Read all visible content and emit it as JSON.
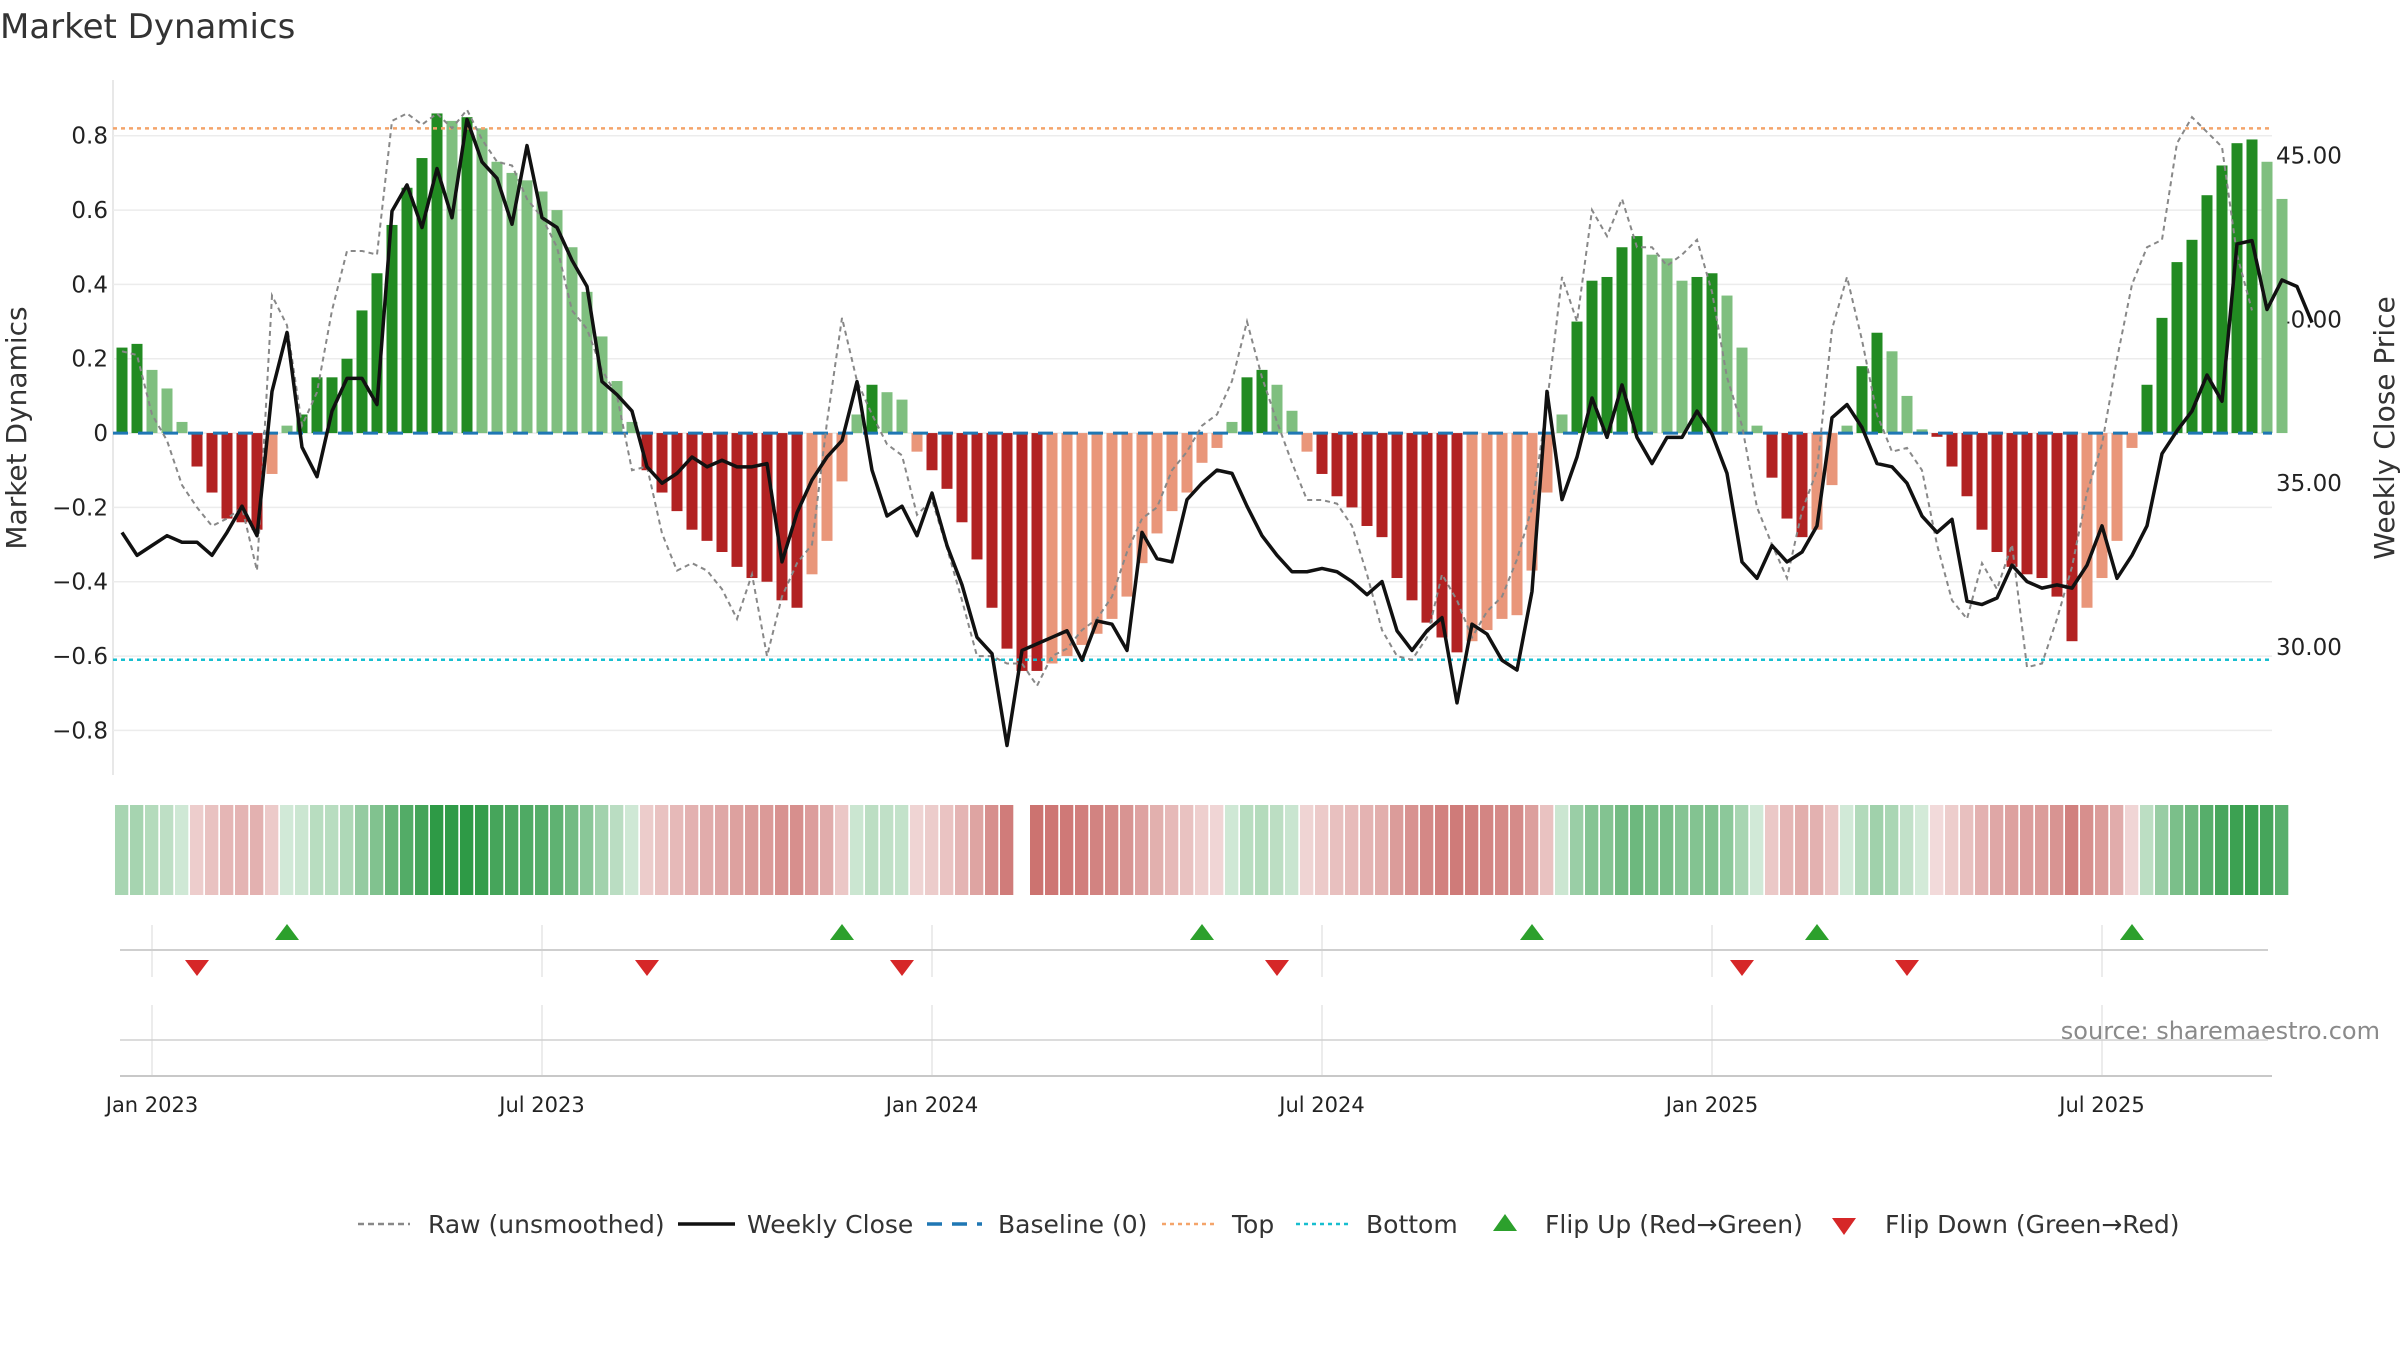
{
  "title": "Market Dynamics",
  "source_note": "source: sharemaestro.com",
  "colors": {
    "strong_green": "#228b22",
    "light_green": "#7fbf7f",
    "strong_red": "#b22222",
    "light_red": "#e9967a",
    "raw_line": "#888888",
    "close_line": "#111111",
    "baseline": "#1f77b4",
    "top_line": "#f4a46a",
    "bottom_line": "#17becf",
    "flip_up": "#2ca02c",
    "flip_down": "#d62728"
  },
  "chart_data": {
    "type": "bar",
    "title": "Market Dynamics",
    "ylabel": "Market Dynamics",
    "y2label": "Weekly Close Price",
    "ylim": [
      -0.92,
      0.95
    ],
    "y2lim": [
      26.1,
      47.3
    ],
    "yticks": [
      {
        "v": 0.8,
        "label": "0.8"
      },
      {
        "v": 0.6,
        "label": "0.6"
      },
      {
        "v": 0.4,
        "label": "0.4"
      },
      {
        "v": 0.2,
        "label": "0.2"
      },
      {
        "v": 0,
        "label": "0"
      },
      {
        "v": -0.2,
        "label": "−0.2"
      },
      {
        "v": -0.4,
        "label": "−0.4"
      },
      {
        "v": -0.6,
        "label": "−0.6"
      },
      {
        "v": -0.8,
        "label": "−0.8"
      }
    ],
    "y2ticks": [
      {
        "v": 45,
        "label": "45.00"
      },
      {
        "v": 40,
        "label": "40.00"
      },
      {
        "v": 35,
        "label": "35.00"
      },
      {
        "v": 30,
        "label": "30.00"
      }
    ],
    "x_date_ticks": [
      {
        "week": 2,
        "label": "Jan 2023"
      },
      {
        "week": 28,
        "label": "Jul 2023"
      },
      {
        "week": 54,
        "label": "Jan 2024"
      },
      {
        "week": 80,
        "label": "Jul 2024"
      },
      {
        "week": 106,
        "label": "Jan 2025"
      },
      {
        "week": 132,
        "label": "Jul 2025"
      }
    ],
    "grid": true,
    "legend_position": "bottom",
    "top_threshold": 0.82,
    "bottom_threshold": -0.61,
    "baseline": 0,
    "weeks": 144,
    "dynamics": [
      0.23,
      0.24,
      0.17,
      0.12,
      0.03,
      -0.09,
      -0.16,
      -0.23,
      -0.24,
      -0.26,
      -0.11,
      0.02,
      0.05,
      0.15,
      0.15,
      0.2,
      0.33,
      0.43,
      0.56,
      0.66,
      0.74,
      0.86,
      0.84,
      0.85,
      0.82,
      0.73,
      0.7,
      0.68,
      0.65,
      0.6,
      0.5,
      0.38,
      0.26,
      0.14,
      0.03,
      -0.1,
      -0.16,
      -0.21,
      -0.26,
      -0.29,
      -0.32,
      -0.36,
      -0.39,
      -0.4,
      -0.45,
      -0.47,
      -0.38,
      -0.29,
      -0.13,
      0.05,
      0.13,
      0.11,
      0.09,
      -0.05,
      -0.1,
      -0.15,
      -0.24,
      -0.34,
      -0.47,
      -0.58,
      -0.64,
      -0.64,
      -0.62,
      -0.6,
      -0.57,
      -0.54,
      -0.5,
      -0.44,
      -0.35,
      -0.27,
      -0.21,
      -0.16,
      -0.08,
      -0.04,
      0.03,
      0.15,
      0.17,
      0.13,
      0.06,
      -0.05,
      -0.11,
      -0.17,
      -0.2,
      -0.25,
      -0.28,
      -0.39,
      -0.45,
      -0.51,
      -0.55,
      -0.59,
      -0.56,
      -0.53,
      -0.5,
      -0.49,
      -0.37,
      -0.16,
      0.05,
      0.3,
      0.41,
      0.42,
      0.5,
      0.53,
      0.48,
      0.47,
      0.41,
      0.42,
      0.43,
      0.37,
      0.23,
      0.02,
      -0.12,
      -0.23,
      -0.28,
      -0.26,
      -0.14,
      0.02,
      0.18,
      0.27,
      0.22,
      0.1,
      0.01,
      -0.01,
      -0.09,
      -0.17,
      -0.26,
      -0.32,
      -0.36,
      -0.38,
      -0.39,
      -0.44,
      -0.56,
      -0.47,
      -0.39,
      -0.29,
      -0.04,
      0.13,
      0.31,
      0.46,
      0.52,
      0.64,
      0.72,
      0.78,
      0.79,
      0.73,
      0.63
    ],
    "raw": [
      0.22,
      0.21,
      0.05,
      -0.02,
      -0.14,
      -0.2,
      -0.25,
      -0.23,
      -0.2,
      -0.37,
      0.37,
      0.29,
      0.02,
      0.11,
      0.33,
      0.49,
      0.49,
      0.48,
      0.84,
      0.86,
      0.83,
      0.86,
      0.82,
      0.87,
      0.79,
      0.73,
      0.72,
      0.63,
      0.58,
      0.5,
      0.33,
      0.28,
      0.17,
      0.1,
      -0.1,
      -0.09,
      -0.27,
      -0.37,
      -0.35,
      -0.37,
      -0.42,
      -0.5,
      -0.38,
      -0.6,
      -0.44,
      -0.35,
      -0.3,
      0.03,
      0.31,
      0.14,
      0.05,
      -0.03,
      -0.06,
      -0.22,
      -0.18,
      -0.31,
      -0.45,
      -0.6,
      -0.6,
      -0.62,
      -0.62,
      -0.68,
      -0.6,
      -0.58,
      -0.53,
      -0.5,
      -0.44,
      -0.32,
      -0.23,
      -0.2,
      -0.1,
      -0.05,
      0.02,
      0.05,
      0.14,
      0.3,
      0.15,
      0.03,
      -0.08,
      -0.18,
      -0.18,
      -0.19,
      -0.25,
      -0.38,
      -0.53,
      -0.6,
      -0.61,
      -0.55,
      -0.38,
      -0.45,
      -0.55,
      -0.48,
      -0.44,
      -0.34,
      -0.2,
      0.08,
      0.42,
      0.3,
      0.6,
      0.53,
      0.63,
      0.5,
      0.5,
      0.45,
      0.48,
      0.52,
      0.38,
      0.15,
      0.02,
      -0.2,
      -0.3,
      -0.39,
      -0.21,
      -0.1,
      0.28,
      0.42,
      0.25,
      0.05,
      -0.05,
      -0.04,
      -0.1,
      -0.3,
      -0.45,
      -0.5,
      -0.35,
      -0.42,
      -0.3,
      -0.63,
      -0.62,
      -0.5,
      -0.36,
      -0.16,
      -0.03,
      0.2,
      0.4,
      0.5,
      0.52,
      0.78,
      0.85,
      0.81,
      0.77,
      0.48,
      0.33
    ],
    "close": [
      33.5,
      32.8,
      33.1,
      33.4,
      33.2,
      33.2,
      32.8,
      33.5,
      34.3,
      33.4,
      37.8,
      39.6,
      36.1,
      35.2,
      37.2,
      38.2,
      38.2,
      37.4,
      43.3,
      44.1,
      42.8,
      44.6,
      43.1,
      46.1,
      44.8,
      44.3,
      42.9,
      45.3,
      43.1,
      42.8,
      41.8,
      41.0,
      38.1,
      37.7,
      37.2,
      35.5,
      35.0,
      35.3,
      35.8,
      35.5,
      35.7,
      35.5,
      35.5,
      35.6,
      32.6,
      34.1,
      35.1,
      35.8,
      36.3,
      38.1,
      35.4,
      34.0,
      34.3,
      33.4,
      34.7,
      33.1,
      31.9,
      30.3,
      29.8,
      27.0,
      29.9,
      30.1,
      30.3,
      30.5,
      29.6,
      30.8,
      30.7,
      29.9,
      33.5,
      32.7,
      32.6,
      34.5,
      35.0,
      35.4,
      35.3,
      34.3,
      33.4,
      32.8,
      32.3,
      32.3,
      32.4,
      32.3,
      32.0,
      31.6,
      32.0,
      30.5,
      29.9,
      30.5,
      30.9,
      28.3,
      30.7,
      30.4,
      29.6,
      29.3,
      31.7,
      37.8,
      34.5,
      35.8,
      37.6,
      36.4,
      38.0,
      36.4,
      35.6,
      36.4,
      36.4,
      37.2,
      36.5,
      35.3,
      32.6,
      32.1,
      33.1,
      32.6,
      32.9,
      33.7,
      37.0,
      37.4,
      36.7,
      35.6,
      35.5,
      35.0,
      34.0,
      33.5,
      33.9,
      31.4,
      31.3,
      31.5,
      32.5,
      32.0,
      31.8,
      31.9,
      31.8,
      32.5,
      33.7,
      32.1,
      32.8,
      33.7,
      35.9,
      36.6,
      37.2,
      38.3,
      37.5,
      42.3,
      42.4,
      40.3,
      41.2,
      41.0,
      39.9
    ]
  },
  "flip_up_weeks": [
    11,
    48,
    72,
    94,
    113,
    134
  ],
  "flip_down_weeks": [
    5,
    35,
    52,
    77,
    108,
    119
  ],
  "legend": {
    "raw": "Raw (unsmoothed)",
    "close": "Weekly Close",
    "baseline": "Baseline (0)",
    "top": "Top",
    "bottom": "Bottom",
    "flip_up": "Flip Up (Red→Green)",
    "flip_down": "Flip Down (Green→Red)"
  }
}
